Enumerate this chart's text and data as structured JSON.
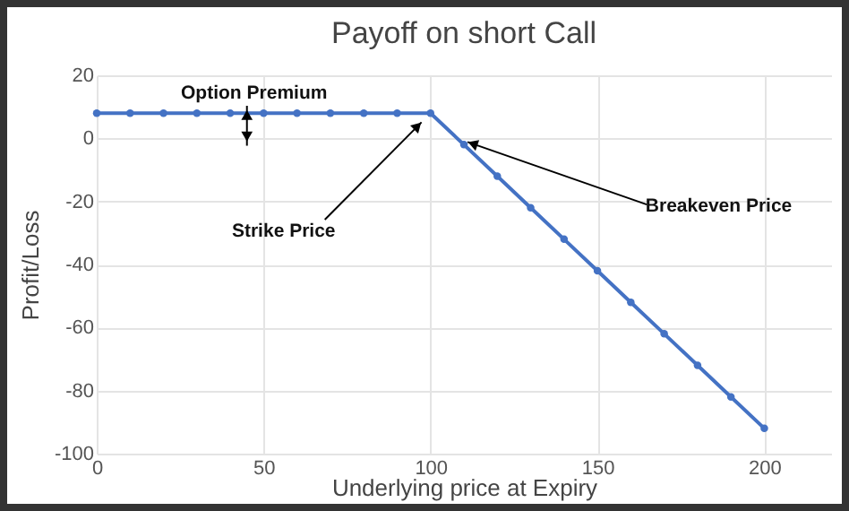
{
  "chart_data": {
    "type": "line",
    "title": "Payoff on short Call",
    "xlabel": "Underlying price at  Expiry",
    "ylabel": "Profit/Loss",
    "x": [
      0,
      10,
      20,
      30,
      40,
      50,
      60,
      70,
      80,
      90,
      100,
      110,
      120,
      130,
      140,
      150,
      160,
      170,
      180,
      190,
      200
    ],
    "series": [
      {
        "color": "#4472c4",
        "values": [
          8,
          8,
          8,
          8,
          8,
          8,
          8,
          8,
          8,
          8,
          8,
          -2,
          -12,
          -22,
          -32,
          -42,
          -52,
          -62,
          -72,
          -82,
          -92
        ]
      }
    ],
    "xlim": [
      0,
      220
    ],
    "xticks": [
      0,
      50,
      100,
      150,
      200
    ],
    "ylim": [
      -100,
      20
    ],
    "yticks": [
      -100,
      -80,
      -60,
      -40,
      -20,
      0,
      20
    ],
    "grid": true,
    "marker": "circle",
    "line_style": "solid",
    "annotations": [
      {
        "text": "Option Premium",
        "x": 45,
        "y": 8
      },
      {
        "text": "Strike Price",
        "x": 100,
        "y": 8
      },
      {
        "text": "Breakeven Price",
        "x": 108,
        "y": 0
      }
    ]
  }
}
